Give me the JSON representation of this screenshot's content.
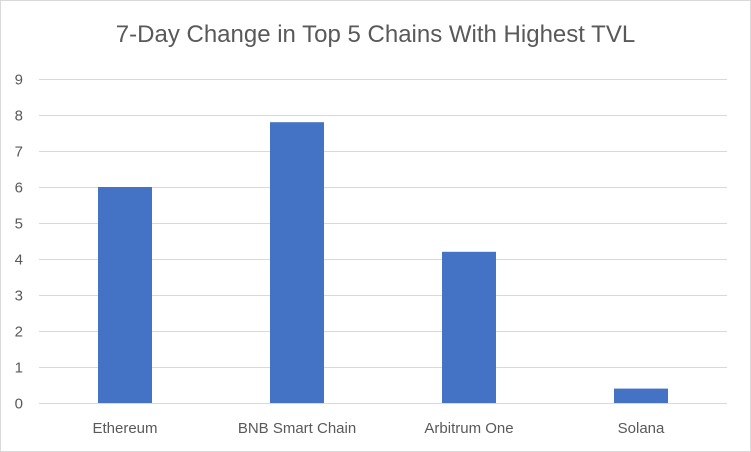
{
  "chart_data": {
    "type": "bar",
    "title": "7-Day Change in Top 5 Chains With Highest TVL",
    "xlabel": "",
    "ylabel": "",
    "categories": [
      "Ethereum",
      "BNB Smart Chain",
      "Arbitrum One",
      "Solana"
    ],
    "values": [
      6.0,
      7.8,
      4.2,
      0.4
    ],
    "ylim": [
      0,
      9
    ],
    "yticks": [
      "0",
      "1",
      "2",
      "3",
      "4",
      "5",
      "6",
      "7",
      "8",
      "9"
    ],
    "grid": true,
    "legend": "none",
    "bar_color": "#4472c4",
    "grid_color": "#d9d9d9",
    "text_color": "#595959"
  }
}
